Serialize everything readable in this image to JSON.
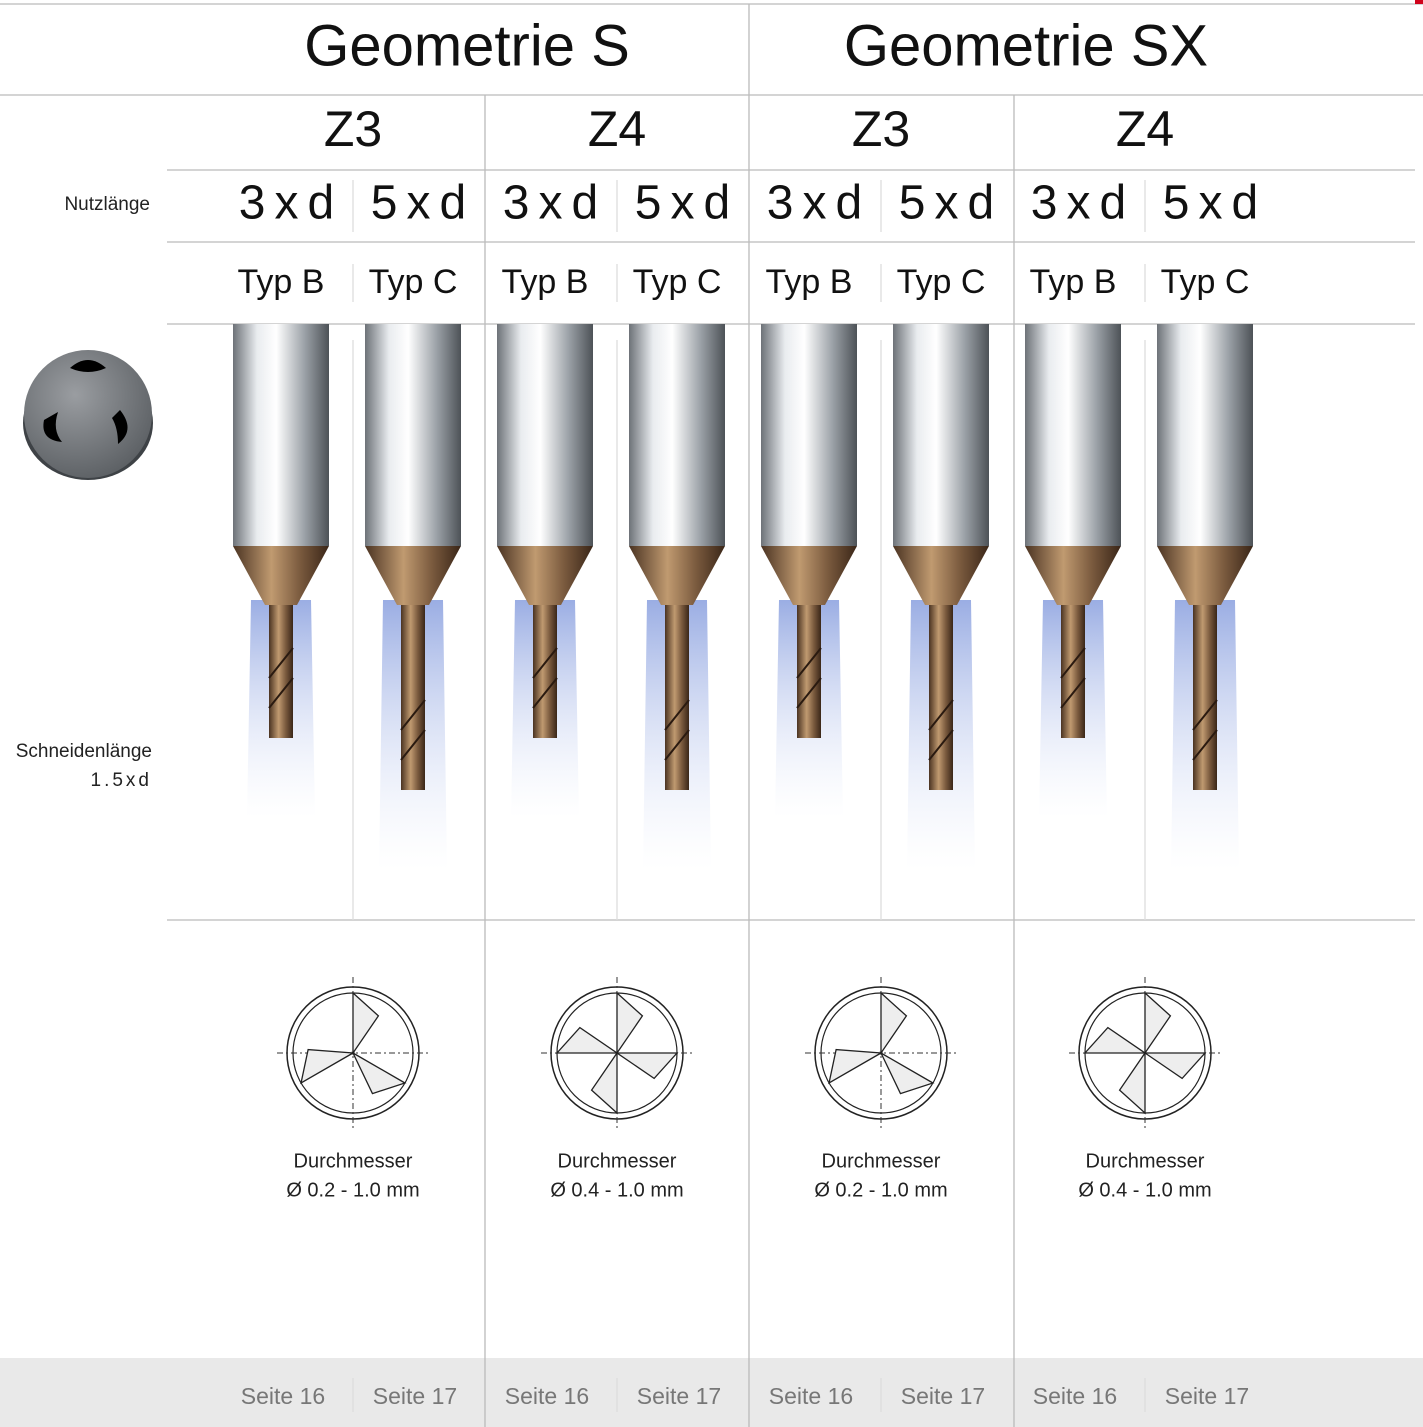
{
  "row_labels": {
    "usable_length": "Nutzlänge",
    "cutting_length": "Schneidenlänge",
    "cutting_length_value": "1.5xd"
  },
  "geometries": [
    {
      "title": "Geometrie S",
      "groups": [
        {
          "title": "Z3",
          "variants": [
            {
              "length": "3xd",
              "type": "Typ B",
              "page": "Seite 16"
            },
            {
              "length": "5xd",
              "type": "Typ C",
              "page": "Seite 17"
            }
          ],
          "diameter_label": "Durchmesser",
          "diameter": "Ø 0.2 - 1.0 mm"
        },
        {
          "title": "Z4",
          "variants": [
            {
              "length": "3xd",
              "type": "Typ B",
              "page": "Seite 16"
            },
            {
              "length": "5xd",
              "type": "Typ C",
              "page": "Seite 17"
            }
          ],
          "diameter_label": "Durchmesser",
          "diameter": "Ø 0.4 - 1.0 mm"
        }
      ]
    },
    {
      "title": "Geometrie SX",
      "groups": [
        {
          "title": "Z3",
          "variants": [
            {
              "length": "3xd",
              "type": "Typ B",
              "page": "Seite 16"
            },
            {
              "length": "5xd",
              "type": "Typ C",
              "page": "Seite 17"
            }
          ],
          "diameter_label": "Durchmesser",
          "diameter": "Ø 0.2 - 1.0 mm"
        },
        {
          "title": "Z4",
          "variants": [
            {
              "length": "3xd",
              "type": "Typ B",
              "page": "Seite 16"
            },
            {
              "length": "5xd",
              "type": "Typ C",
              "page": "Seite 17"
            }
          ],
          "diameter_label": "Durchmesser",
          "diameter": "Ø 0.4 - 1.0 mm"
        }
      ]
    }
  ]
}
